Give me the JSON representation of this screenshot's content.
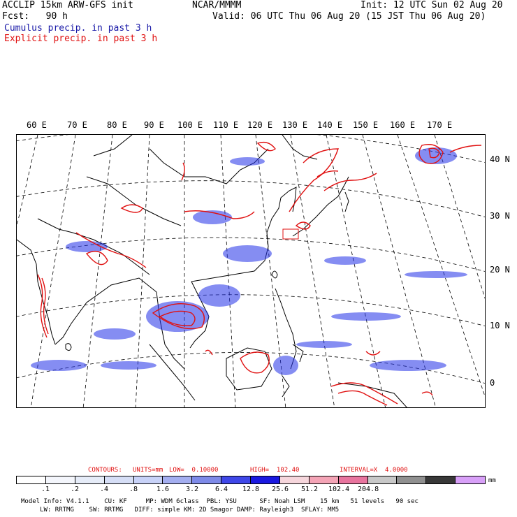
{
  "header": {
    "title_left": "ACCLIP 15km ARW-GFS init",
    "fcst_label": "Fcst:   90 h",
    "center": "NCAR/MMMM",
    "init": "Init: 12 UTC Sun 02 Aug 20",
    "valid": "Valid: 06 UTC Thu 06 Aug 20 (15 JST Thu 06 Aug 20)",
    "legend_cumulus": "Cumulus precip. in past 3 h",
    "legend_explicit": "Explicit precip. in past 3 h"
  },
  "map": {
    "lon_labels": [
      "60 E",
      "70 E",
      "80 E",
      "90 E",
      "100 E",
      "110 E",
      "120 E",
      "130 E",
      "140 E",
      "150 E",
      "160 E",
      "170 E"
    ],
    "lat_labels": [
      "40 N",
      "30 N",
      "20 N",
      "10 N",
      "0"
    ],
    "colors": {
      "cumulus": "#2030e8",
      "explicit": "#e01010",
      "coast": "#000000"
    }
  },
  "contours_line": {
    "label_contours": "CONTOURS:",
    "label_units": "UNITS=mm",
    "label_low": "LOW=  0.10000",
    "label_high": "HIGH=  102.40",
    "label_interval": "INTERVAL=X  4.0000"
  },
  "colorbar": {
    "unit": "mm",
    "colors": [
      "#ffffff",
      "#f4f6fc",
      "#e6ecf8",
      "#d6def6",
      "#c8d2f8",
      "#a4aef0",
      "#7e8ae8",
      "#3f47e8",
      "#1a18e0",
      "#f6d6dc",
      "#f4a4b6",
      "#e8749e",
      "#c8c8c8",
      "#909090",
      "#383838",
      "#d8a0f8"
    ],
    "labels": [
      ".1",
      ".2",
      ".4",
      ".8",
      "1.6",
      "3.2",
      "6.4",
      "12.8",
      "25.6",
      "51.2",
      "102.4",
      "204.8"
    ]
  },
  "footer": {
    "line1": "Model Info: V4.1.1    CU: KF     MP: WDM 6class  PBL: YSU      SF: Noah LSM    15 km   51 levels   90 sec",
    "line2": "     LW: RRTMG    SW: RRTMG   DIFF: simple KM: 2D Smagor DAMP: Rayleigh3  SFLAY: MM5"
  }
}
